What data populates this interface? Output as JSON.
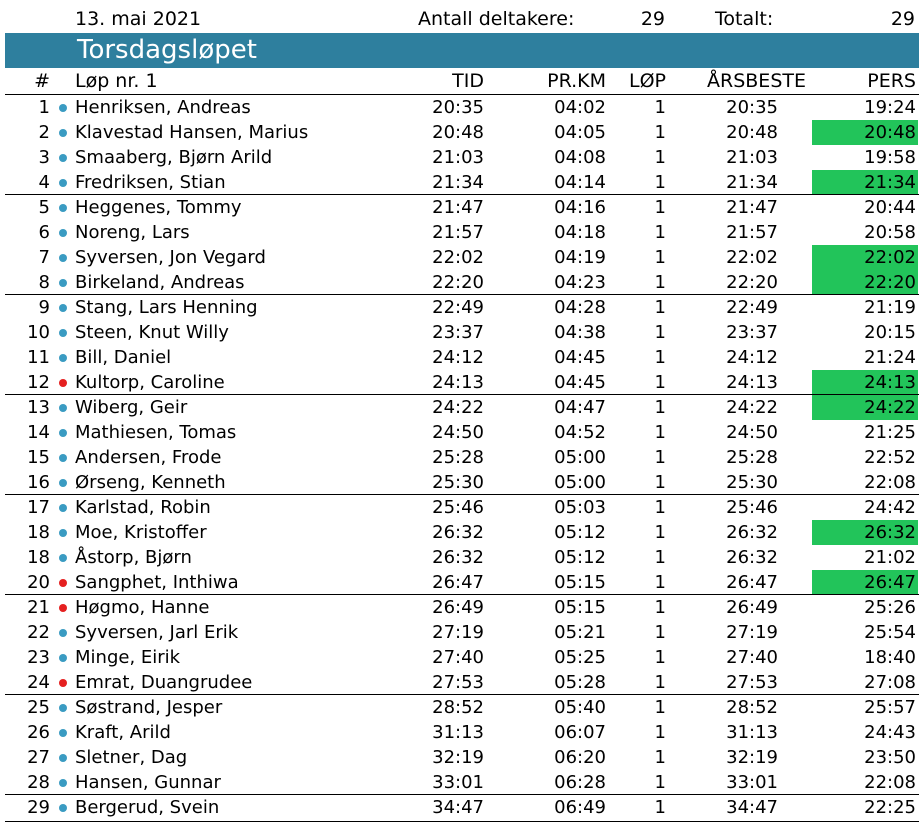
{
  "header": {
    "date": "13. mai 2021",
    "participants_label": "Antall deltakere:",
    "participants_value": "29",
    "total_label": "Totalt:",
    "total_value": "29"
  },
  "title": "Torsdagsløpet",
  "columns": {
    "rank": "#",
    "race": "Løp nr. 1",
    "time": "TID",
    "per_km": "PR.KM",
    "races": "LØP",
    "season_best": "ÅRSBESTE",
    "personal_best": "PERS"
  },
  "colors": {
    "banner": "#2e7f9e",
    "pr_highlight": "#22c45a",
    "dot_blue": "#3a9bc2",
    "dot_red": "#e52020"
  },
  "rows": [
    {
      "rank": "1",
      "dot": "blue",
      "name": "Henriksen, Andreas",
      "time": "20:35",
      "per_km": "04:02",
      "races": "1",
      "season_best": "20:35",
      "personal_best": "19:24",
      "pr": false
    },
    {
      "rank": "2",
      "dot": "blue",
      "name": "Klavestad Hansen, Marius",
      "time": "20:48",
      "per_km": "04:05",
      "races": "1",
      "season_best": "20:48",
      "personal_best": "20:48",
      "pr": true
    },
    {
      "rank": "3",
      "dot": "blue",
      "name": "Smaaberg, Bjørn Arild",
      "time": "21:03",
      "per_km": "04:08",
      "races": "1",
      "season_best": "21:03",
      "personal_best": "19:58",
      "pr": false
    },
    {
      "rank": "4",
      "dot": "blue",
      "name": "Fredriksen, Stian",
      "time": "21:34",
      "per_km": "04:14",
      "races": "1",
      "season_best": "21:34",
      "personal_best": "21:34",
      "pr": true
    },
    {
      "rank": "5",
      "dot": "blue",
      "name": "Heggenes, Tommy",
      "time": "21:47",
      "per_km": "04:16",
      "races": "1",
      "season_best": "21:47",
      "personal_best": "20:44",
      "pr": false
    },
    {
      "rank": "6",
      "dot": "blue",
      "name": "Noreng, Lars",
      "time": "21:57",
      "per_km": "04:18",
      "races": "1",
      "season_best": "21:57",
      "personal_best": "20:58",
      "pr": false
    },
    {
      "rank": "7",
      "dot": "blue",
      "name": "Syversen, Jon Vegard",
      "time": "22:02",
      "per_km": "04:19",
      "races": "1",
      "season_best": "22:02",
      "personal_best": "22:02",
      "pr": true
    },
    {
      "rank": "8",
      "dot": "blue",
      "name": "Birkeland, Andreas",
      "time": "22:20",
      "per_km": "04:23",
      "races": "1",
      "season_best": "22:20",
      "personal_best": "22:20",
      "pr": true
    },
    {
      "rank": "9",
      "dot": "blue",
      "name": "Stang, Lars Henning",
      "time": "22:49",
      "per_km": "04:28",
      "races": "1",
      "season_best": "22:49",
      "personal_best": "21:19",
      "pr": false
    },
    {
      "rank": "10",
      "dot": "blue",
      "name": "Steen, Knut Willy",
      "time": "23:37",
      "per_km": "04:38",
      "races": "1",
      "season_best": "23:37",
      "personal_best": "20:15",
      "pr": false
    },
    {
      "rank": "11",
      "dot": "blue",
      "name": "Bill, Daniel",
      "time": "24:12",
      "per_km": "04:45",
      "races": "1",
      "season_best": "24:12",
      "personal_best": "21:24",
      "pr": false
    },
    {
      "rank": "12",
      "dot": "red",
      "name": "Kultorp, Caroline",
      "time": "24:13",
      "per_km": "04:45",
      "races": "1",
      "season_best": "24:13",
      "personal_best": "24:13",
      "pr": true
    },
    {
      "rank": "13",
      "dot": "blue",
      "name": "Wiberg, Geir",
      "time": "24:22",
      "per_km": "04:47",
      "races": "1",
      "season_best": "24:22",
      "personal_best": "24:22",
      "pr": true
    },
    {
      "rank": "14",
      "dot": "blue",
      "name": "Mathiesen, Tomas",
      "time": "24:50",
      "per_km": "04:52",
      "races": "1",
      "season_best": "24:50",
      "personal_best": "21:25",
      "pr": false
    },
    {
      "rank": "15",
      "dot": "blue",
      "name": "Andersen, Frode",
      "time": "25:28",
      "per_km": "05:00",
      "races": "1",
      "season_best": "25:28",
      "personal_best": "22:52",
      "pr": false
    },
    {
      "rank": "16",
      "dot": "blue",
      "name": "Ørseng, Kenneth",
      "time": "25:30",
      "per_km": "05:00",
      "races": "1",
      "season_best": "25:30",
      "personal_best": "22:08",
      "pr": false
    },
    {
      "rank": "17",
      "dot": "blue",
      "name": "Karlstad, Robin",
      "time": "25:46",
      "per_km": "05:03",
      "races": "1",
      "season_best": "25:46",
      "personal_best": "24:42",
      "pr": false
    },
    {
      "rank": "18",
      "dot": "blue",
      "name": "Moe, Kristoffer",
      "time": "26:32",
      "per_km": "05:12",
      "races": "1",
      "season_best": "26:32",
      "personal_best": "26:32",
      "pr": true
    },
    {
      "rank": "18",
      "dot": "blue",
      "name": "Åstorp, Bjørn",
      "time": "26:32",
      "per_km": "05:12",
      "races": "1",
      "season_best": "26:32",
      "personal_best": "21:02",
      "pr": false
    },
    {
      "rank": "20",
      "dot": "red",
      "name": "Sangphet, Inthiwa",
      "time": "26:47",
      "per_km": "05:15",
      "races": "1",
      "season_best": "26:47",
      "personal_best": "26:47",
      "pr": true
    },
    {
      "rank": "21",
      "dot": "red",
      "name": "Høgmo, Hanne",
      "time": "26:49",
      "per_km": "05:15",
      "races": "1",
      "season_best": "26:49",
      "personal_best": "25:26",
      "pr": false
    },
    {
      "rank": "22",
      "dot": "blue",
      "name": "Syversen, Jarl Erik",
      "time": "27:19",
      "per_km": "05:21",
      "races": "1",
      "season_best": "27:19",
      "personal_best": "25:54",
      "pr": false
    },
    {
      "rank": "23",
      "dot": "blue",
      "name": "Minge, Eirik",
      "time": "27:40",
      "per_km": "05:25",
      "races": "1",
      "season_best": "27:40",
      "personal_best": "18:40",
      "pr": false
    },
    {
      "rank": "24",
      "dot": "red",
      "name": "Emrat, Duangrudee",
      "time": "27:53",
      "per_km": "05:28",
      "races": "1",
      "season_best": "27:53",
      "personal_best": "27:08",
      "pr": false
    },
    {
      "rank": "25",
      "dot": "blue",
      "name": "Søstrand, Jesper",
      "time": "28:52",
      "per_km": "05:40",
      "races": "1",
      "season_best": "28:52",
      "personal_best": "25:57",
      "pr": false
    },
    {
      "rank": "26",
      "dot": "blue",
      "name": "Kraft, Arild",
      "time": "31:13",
      "per_km": "06:07",
      "races": "1",
      "season_best": "31:13",
      "personal_best": "24:43",
      "pr": false
    },
    {
      "rank": "27",
      "dot": "blue",
      "name": "Sletner, Dag",
      "time": "32:19",
      "per_km": "06:20",
      "races": "1",
      "season_best": "32:19",
      "personal_best": "23:50",
      "pr": false
    },
    {
      "rank": "28",
      "dot": "blue",
      "name": "Hansen, Gunnar",
      "time": "33:01",
      "per_km": "06:28",
      "races": "1",
      "season_best": "33:01",
      "personal_best": "22:08",
      "pr": false
    },
    {
      "rank": "29",
      "dot": "blue",
      "name": "Bergerud, Svein",
      "time": "34:47",
      "per_km": "06:49",
      "races": "1",
      "season_best": "34:47",
      "personal_best": "22:25",
      "pr": false
    }
  ]
}
